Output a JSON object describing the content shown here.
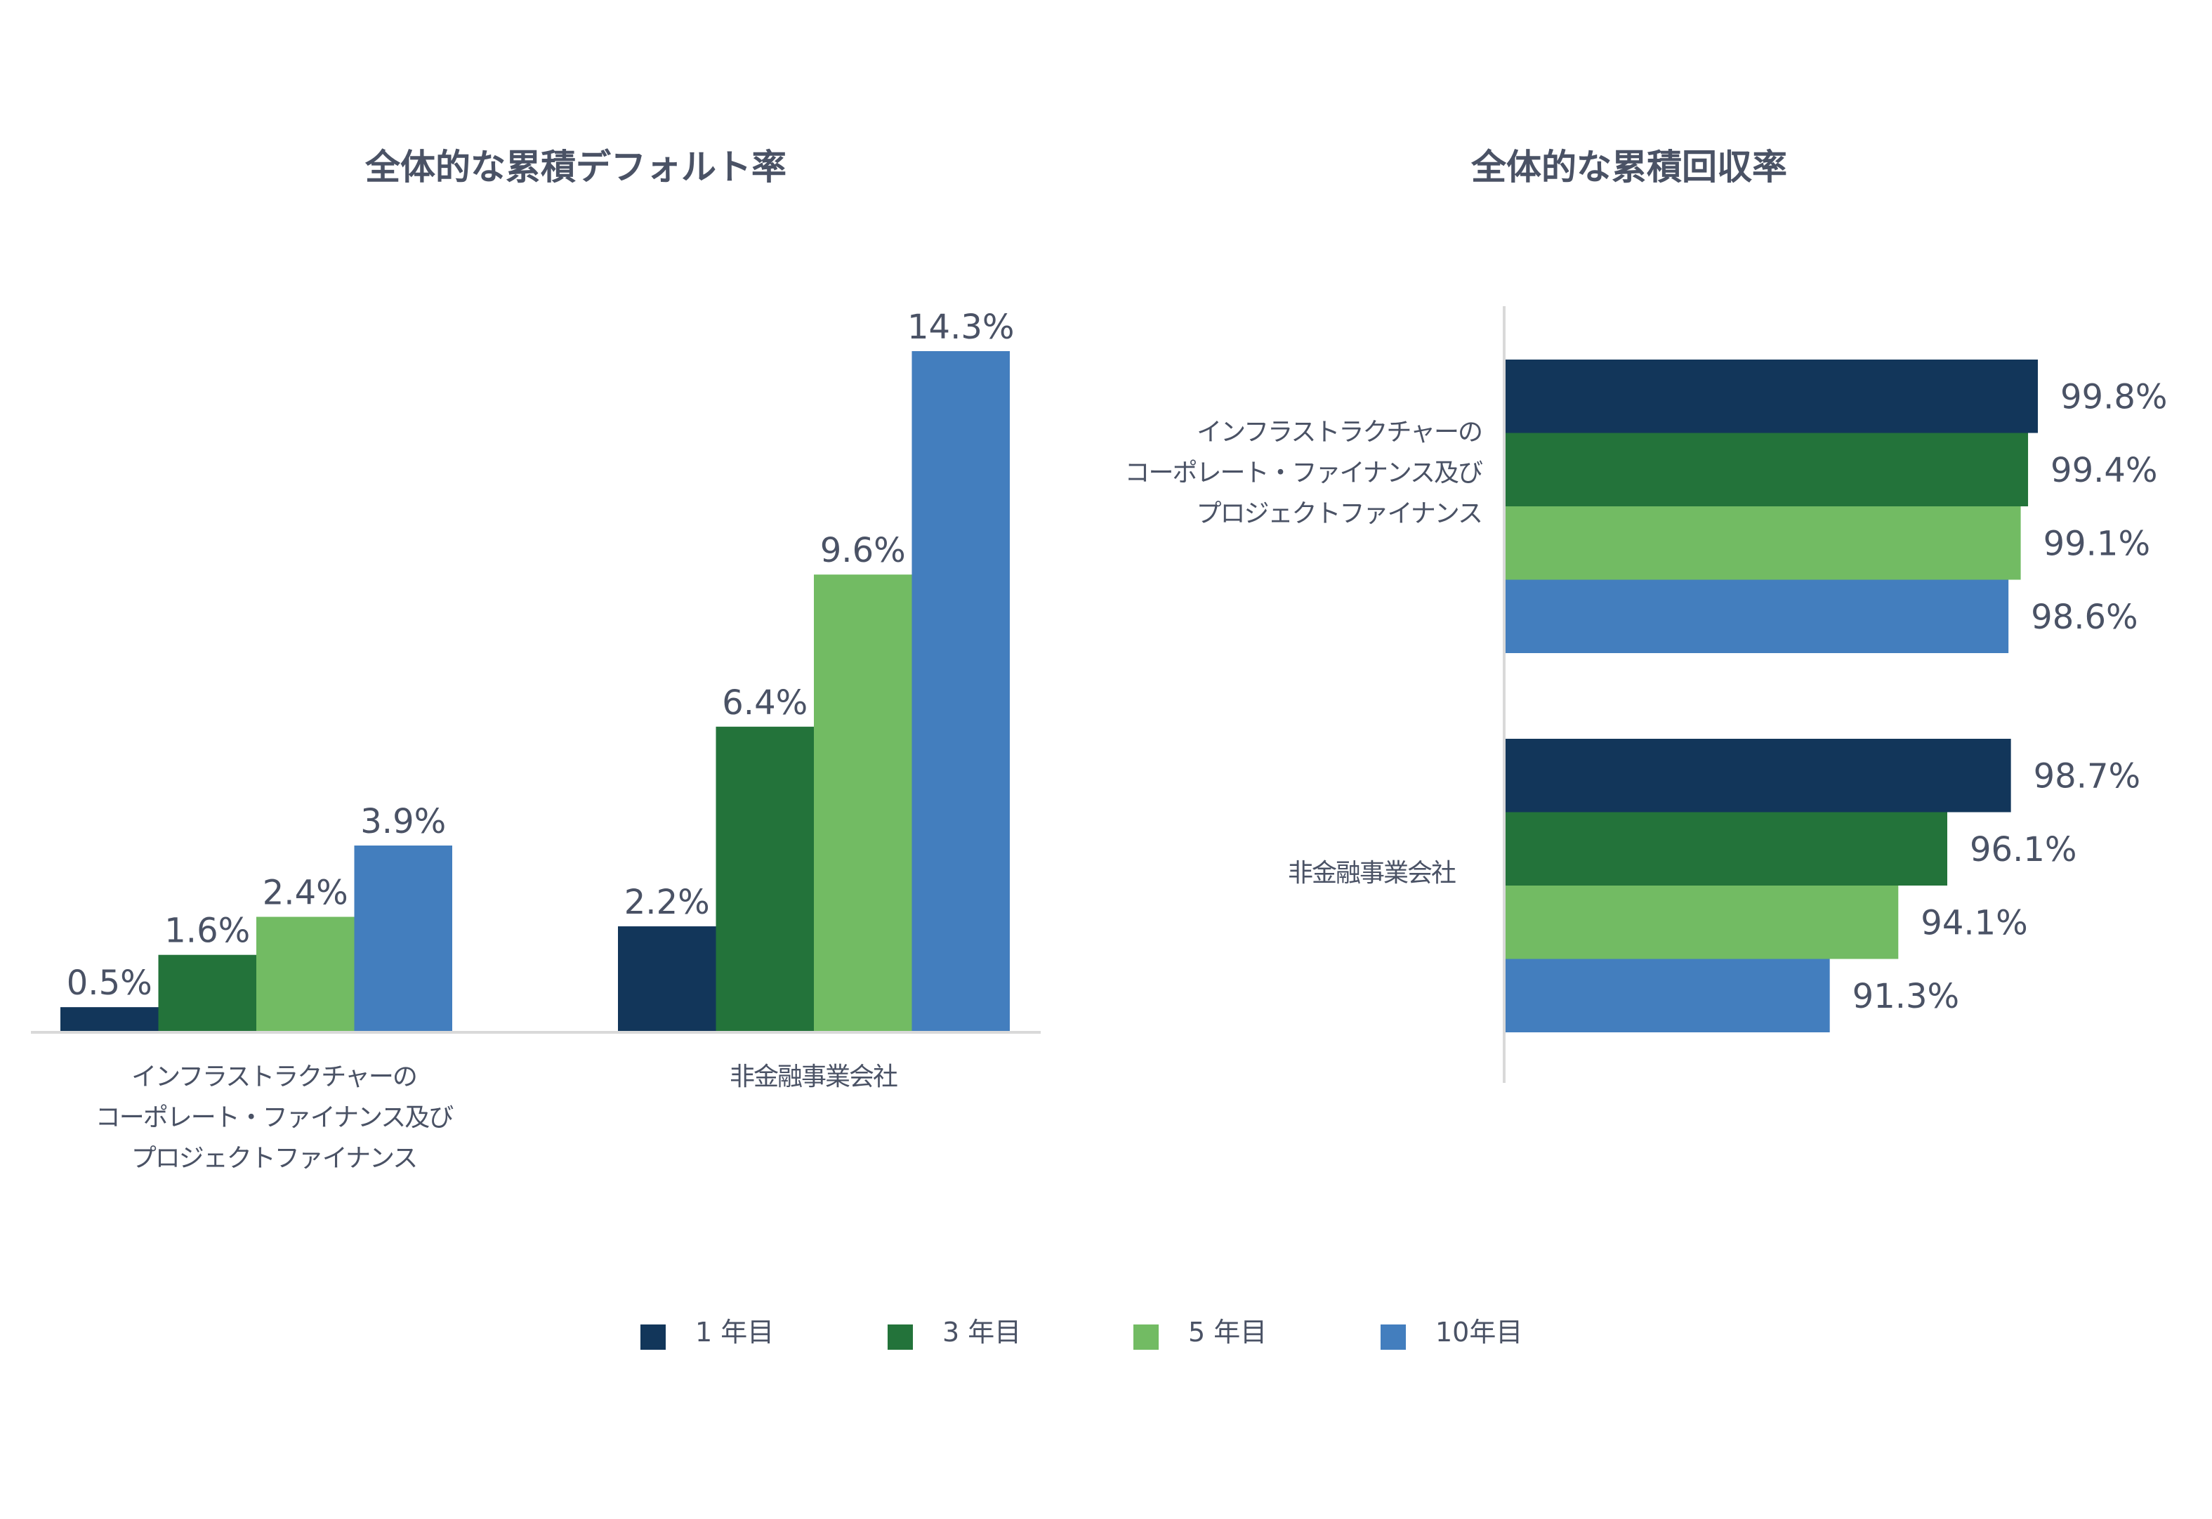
{
  "colors": {
    "y1": "#12365a",
    "y3": "#23733a",
    "y5": "#72bb63",
    "y10": "#437ebe",
    "axis": "#d9d9d9",
    "text": "#4a5265"
  },
  "legend": [
    {
      "label": "1 年目",
      "color": "#12365a"
    },
    {
      "label": "3 年目",
      "color": "#23733a"
    },
    {
      "label": "5 年目",
      "color": "#72bb63"
    },
    {
      "label": "10年目",
      "color": "#437ebe"
    }
  ],
  "chart_data": [
    {
      "type": "bar",
      "orientation": "vertical",
      "title": "全体的な累積デフォルト率",
      "categories": [
        "インフラストラクチャーの\nコーポレート・ファイナンス及び\nプロジェクトファイナンス",
        "非金融事業会社"
      ],
      "category_lines": [
        [
          "インフラストラクチャーの",
          "コーポレート・ファイナンス及び",
          "プロジェクトファイナンス"
        ],
        [
          "非金融事業会社"
        ]
      ],
      "series": [
        {
          "name": "1 年目",
          "values": [
            0.5,
            2.2
          ],
          "labels": [
            "0.5%",
            "2.2%"
          ]
        },
        {
          "name": "3 年目",
          "values": [
            1.6,
            6.4
          ],
          "labels": [
            "1.6%",
            "6.4%"
          ]
        },
        {
          "name": "5 年目",
          "values": [
            2.4,
            9.6
          ],
          "labels": [
            "2.4%",
            "9.6%"
          ]
        },
        {
          "name": "10年目",
          "values": [
            3.9,
            14.3
          ],
          "labels": [
            "3.9%",
            "14.3%"
          ]
        }
      ],
      "ylim": [
        0,
        14.3
      ],
      "grid": false,
      "legend": "bottom"
    },
    {
      "type": "bar",
      "orientation": "horizontal",
      "title": "全体的な累積回収率",
      "categories": [
        "インフラストラクチャーの\nコーポレート・ファイナンス及び\nプロジェクトファイナンス",
        "非金融事業会社"
      ],
      "category_lines": [
        [
          "インフラストラクチャーの",
          "コーポレート・ファイナンス及び",
          "プロジェクトファイナンス"
        ],
        [
          "非金融事業会社"
        ]
      ],
      "series": [
        {
          "name": "1 年目",
          "values": [
            99.8,
            98.7
          ],
          "labels": [
            "99.8%",
            "98.7%"
          ]
        },
        {
          "name": "3 年目",
          "values": [
            99.4,
            96.1
          ],
          "labels": [
            "99.4%",
            "96.1%"
          ]
        },
        {
          "name": "5 年目",
          "values": [
            99.1,
            94.1
          ],
          "labels": [
            "99.1%",
            "94.1%"
          ]
        },
        {
          "name": "10年目",
          "values": [
            98.6,
            91.3
          ],
          "labels": [
            "98.6%",
            "91.3%"
          ]
        }
      ],
      "xlim": [
        78,
        100
      ],
      "grid": false,
      "legend": "bottom"
    }
  ]
}
